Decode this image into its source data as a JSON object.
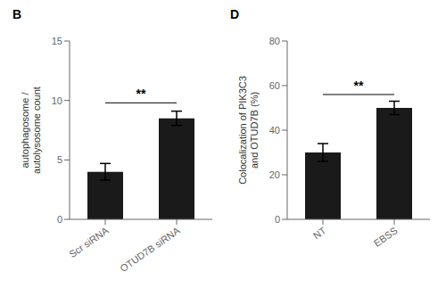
{
  "chart_data": [
    {
      "type": "bar",
      "title": "B",
      "categories": [
        "Scr siRNA",
        "OTUD7B siRNA"
      ],
      "values": [
        4.0,
        8.5
      ],
      "errors": [
        0.7,
        0.6
      ],
      "color": "#1a1a1a",
      "ylabel": "autophagosome /\nautolysosome count",
      "ylim": [
        0,
        15
      ],
      "yticks": [
        0,
        5,
        10,
        15
      ],
      "annotations": [
        {
          "text": "**",
          "from": "Scr siRNA",
          "to": "OTUD7B siRNA",
          "y": 9.8
        }
      ]
    },
    {
      "type": "bar",
      "title": "D",
      "categories": [
        "NT",
        "EBSS"
      ],
      "values": [
        30.0,
        50.0
      ],
      "errors": [
        4.0,
        3.0
      ],
      "color": "#1a1a1a",
      "ylabel": "Colocalization of PIK3C3\nand OTUD7B (%)",
      "ylim": [
        0,
        80
      ],
      "yticks": [
        0,
        20,
        40,
        60,
        80
      ],
      "annotations": [
        {
          "text": "**",
          "from": "NT",
          "to": "EBSS",
          "y": 56
        }
      ]
    }
  ]
}
